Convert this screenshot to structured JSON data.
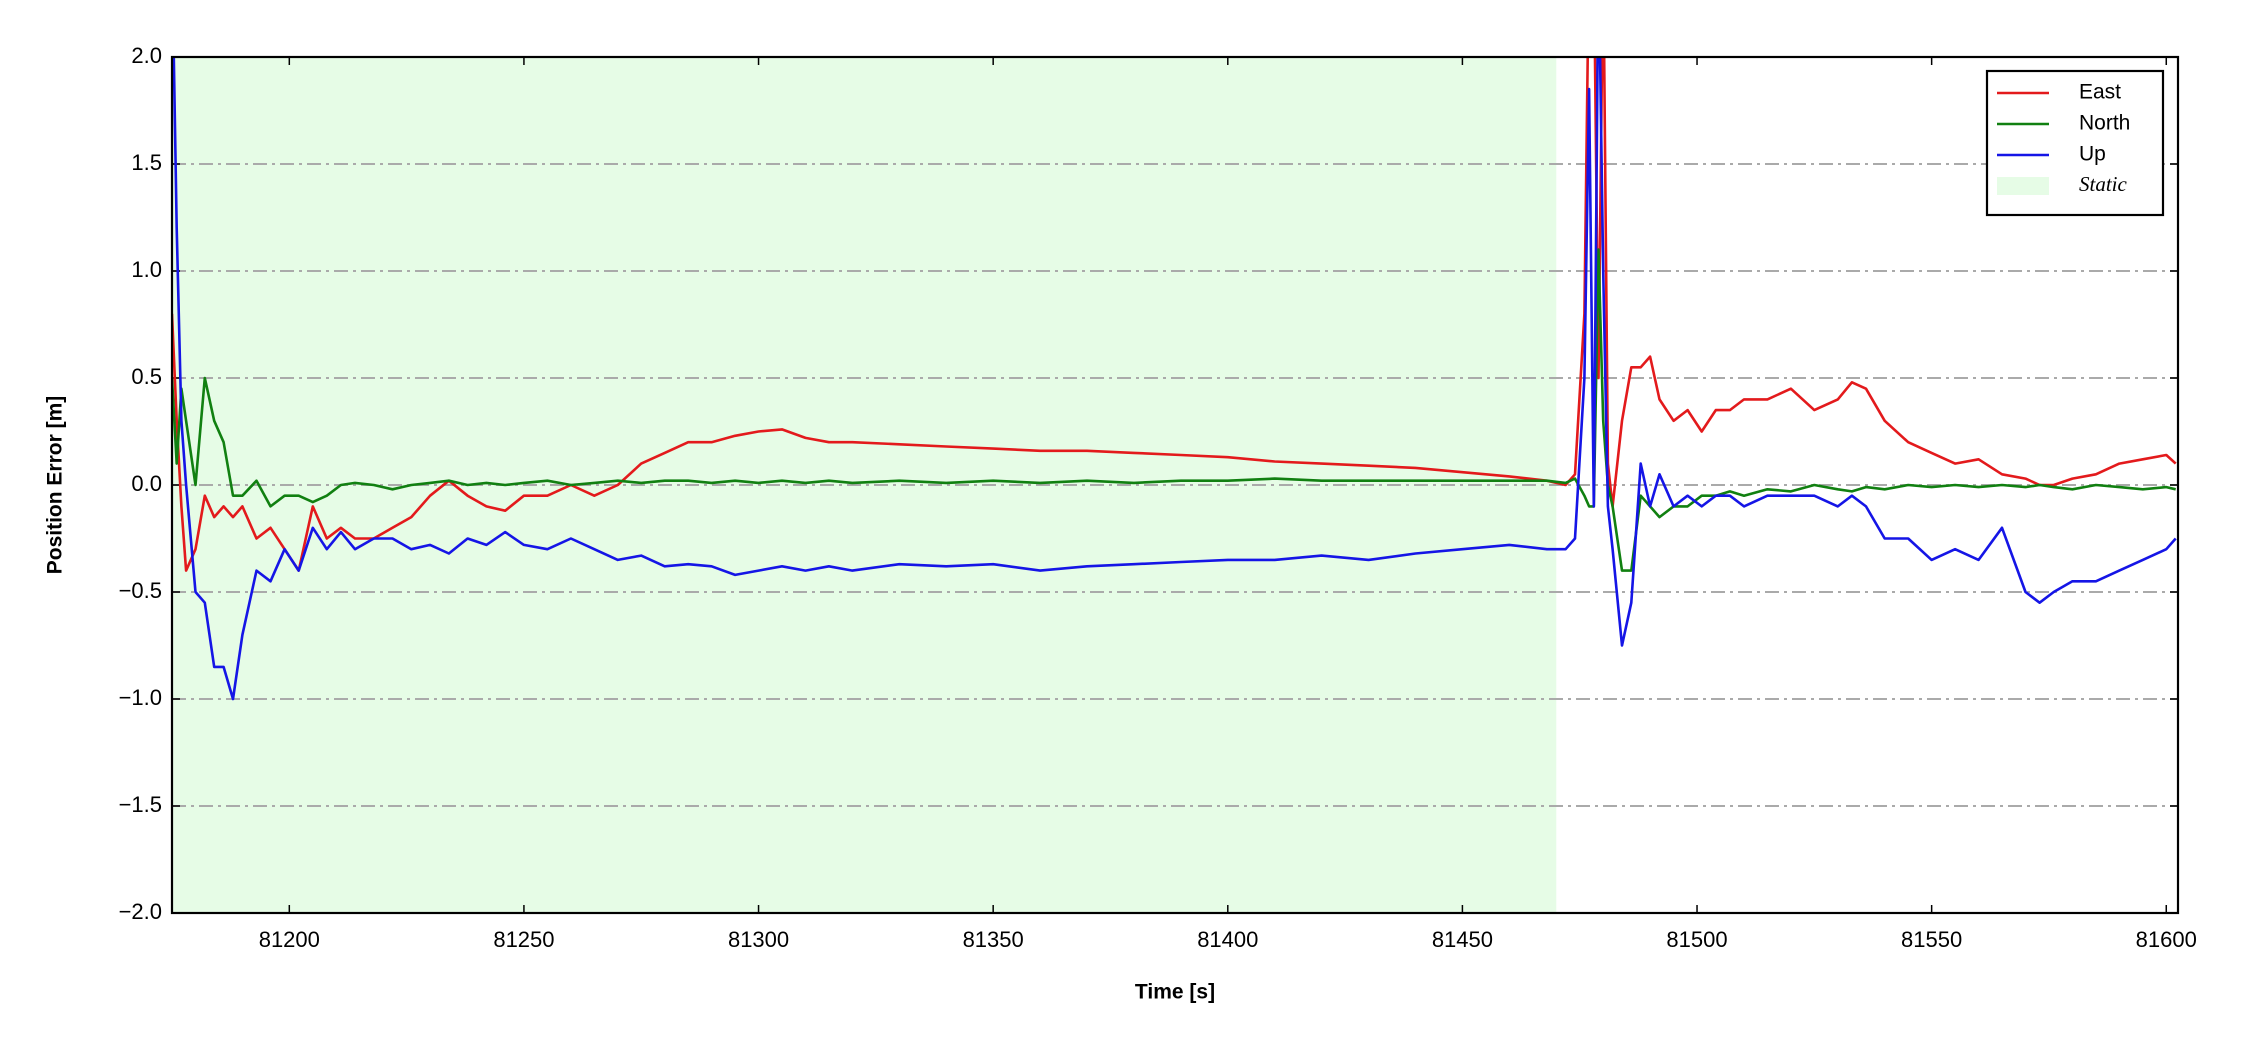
{
  "chart_data": {
    "type": "line",
    "xlabel": "Time [s]",
    "ylabel": "Position Error [m]",
    "x": [
      81175,
      81176,
      81177,
      81178,
      81180,
      81182,
      81184,
      81186,
      81188,
      81190,
      81193,
      81196,
      81199,
      81202,
      81205,
      81208,
      81211,
      81214,
      81218,
      81222,
      81226,
      81230,
      81234,
      81238,
      81242,
      81246,
      81250,
      81255,
      81260,
      81265,
      81270,
      81275,
      81280,
      81285,
      81290,
      81295,
      81300,
      81305,
      81310,
      81315,
      81320,
      81330,
      81340,
      81350,
      81360,
      81370,
      81380,
      81390,
      81400,
      81410,
      81420,
      81430,
      81440,
      81450,
      81460,
      81468,
      81472,
      81474,
      81476,
      81477,
      81478,
      81479,
      81480,
      81481,
      81482,
      81484,
      81486,
      81488,
      81490,
      81492,
      81495,
      81498,
      81501,
      81504,
      81507,
      81510,
      81515,
      81520,
      81525,
      81530,
      81533,
      81536,
      81540,
      81545,
      81550,
      81555,
      81560,
      81565,
      81570,
      81573,
      81576,
      81580,
      81585,
      81590,
      81595,
      81600,
      81602
    ],
    "series": [
      {
        "name": "East",
        "color": "#e31a1c",
        "values": [
          0.8,
          0.3,
          -0.1,
          -0.4,
          -0.3,
          -0.05,
          -0.15,
          -0.1,
          -0.15,
          -0.1,
          -0.25,
          -0.2,
          -0.3,
          -0.4,
          -0.1,
          -0.25,
          -0.2,
          -0.25,
          -0.25,
          -0.2,
          -0.15,
          -0.05,
          0.02,
          -0.05,
          -0.1,
          -0.12,
          -0.05,
          -0.05,
          0,
          -0.05,
          0,
          0.1,
          0.15,
          0.2,
          0.2,
          0.23,
          0.25,
          0.26,
          0.22,
          0.2,
          0.2,
          0.19,
          0.18,
          0.17,
          0.16,
          0.16,
          0.15,
          0.14,
          0.13,
          0.11,
          0.1,
          0.09,
          0.08,
          0.06,
          0.04,
          0.02,
          0.0,
          0.05,
          0.8,
          2.5,
          2.5,
          0.5,
          2.5,
          0.1,
          -0.1,
          0.3,
          0.55,
          0.55,
          0.6,
          0.4,
          0.3,
          0.35,
          0.25,
          0.35,
          0.35,
          0.4,
          0.4,
          0.45,
          0.35,
          0.4,
          0.48,
          0.45,
          0.3,
          0.2,
          0.15,
          0.1,
          0.12,
          0.05,
          0.03,
          0,
          0,
          0.03,
          0.05,
          0.1,
          0.12,
          0.14,
          0.1
        ]
      },
      {
        "name": "North",
        "color": "#118011",
        "values": [
          0.5,
          0.1,
          0.45,
          0.3,
          0.0,
          0.5,
          0.3,
          0.2,
          -0.05,
          -0.05,
          0.02,
          -0.1,
          -0.05,
          -0.05,
          -0.08,
          -0.05,
          0,
          0.01,
          0,
          -0.02,
          0,
          0.01,
          0.02,
          0,
          0.01,
          0,
          0.01,
          0.02,
          0,
          0.01,
          0.02,
          0.01,
          0.02,
          0.02,
          0.01,
          0.02,
          0.01,
          0.02,
          0.01,
          0.02,
          0.01,
          0.02,
          0.01,
          0.02,
          0.01,
          0.02,
          0.01,
          0.02,
          0.02,
          0.03,
          0.02,
          0.02,
          0.02,
          0.02,
          0.02,
          0.02,
          0.01,
          0.03,
          -0.05,
          -0.1,
          -0.1,
          1.1,
          0.3,
          0.0,
          -0.1,
          -0.4,
          -0.4,
          -0.05,
          -0.1,
          -0.15,
          -0.1,
          -0.1,
          -0.05,
          -0.05,
          -0.03,
          -0.05,
          -0.02,
          -0.03,
          0,
          -0.02,
          -0.03,
          -0.01,
          -0.02,
          0,
          -0.01,
          0,
          -0.01,
          0,
          -0.01,
          0,
          -0.01,
          -0.02,
          0,
          -0.01,
          -0.02,
          -0.01,
          -0.02
        ]
      },
      {
        "name": "Up",
        "color": "#1515e6",
        "values": [
          2.5,
          1.2,
          0.3,
          0,
          -0.5,
          -0.55,
          -0.85,
          -0.85,
          -1.0,
          -0.7,
          -0.4,
          -0.45,
          -0.3,
          -0.4,
          -0.2,
          -0.3,
          -0.22,
          -0.3,
          -0.25,
          -0.25,
          -0.3,
          -0.28,
          -0.32,
          -0.25,
          -0.28,
          -0.22,
          -0.28,
          -0.3,
          -0.25,
          -0.3,
          -0.35,
          -0.33,
          -0.38,
          -0.37,
          -0.38,
          -0.42,
          -0.4,
          -0.38,
          -0.4,
          -0.38,
          -0.4,
          -0.37,
          -0.38,
          -0.37,
          -0.4,
          -0.38,
          -0.37,
          -0.36,
          -0.35,
          -0.35,
          -0.33,
          -0.35,
          -0.32,
          -0.3,
          -0.28,
          -0.3,
          -0.3,
          -0.25,
          0.5,
          1.85,
          -0.1,
          2.5,
          1.0,
          -0.1,
          -0.3,
          -0.75,
          -0.55,
          0.1,
          -0.1,
          0.05,
          -0.1,
          -0.05,
          -0.1,
          -0.05,
          -0.05,
          -0.1,
          -0.05,
          -0.05,
          -0.05,
          -0.1,
          -0.05,
          -0.1,
          -0.25,
          -0.25,
          -0.35,
          -0.3,
          -0.35,
          -0.2,
          -0.5,
          -0.55,
          -0.5,
          -0.45,
          -0.45,
          -0.4,
          -0.35,
          -0.3,
          -0.25
        ]
      }
    ],
    "static_label": "Static",
    "static_span": [
      81175,
      81470
    ],
    "static_color": "#e6fce6",
    "xlim": [
      81175,
      81602.5
    ],
    "xticks": [
      81200,
      81250,
      81300,
      81350,
      81400,
      81450,
      81500,
      81550,
      81600
    ],
    "ylim": [
      -2,
      2
    ],
    "yticks": [
      {
        "value": -2,
        "label": "−2.0"
      },
      {
        "value": -1.5,
        "label": "−1.5"
      },
      {
        "value": -1,
        "label": "−1.0"
      },
      {
        "value": -0.5,
        "label": "−0.5"
      },
      {
        "value": 0,
        "label": "0.0"
      },
      0.5,
      {
        "value": 1,
        "label": "1.0"
      },
      1.5,
      {
        "value": 2,
        "label": "2.0"
      }
    ],
    "grid": true,
    "legend_position": "upper-right"
  }
}
